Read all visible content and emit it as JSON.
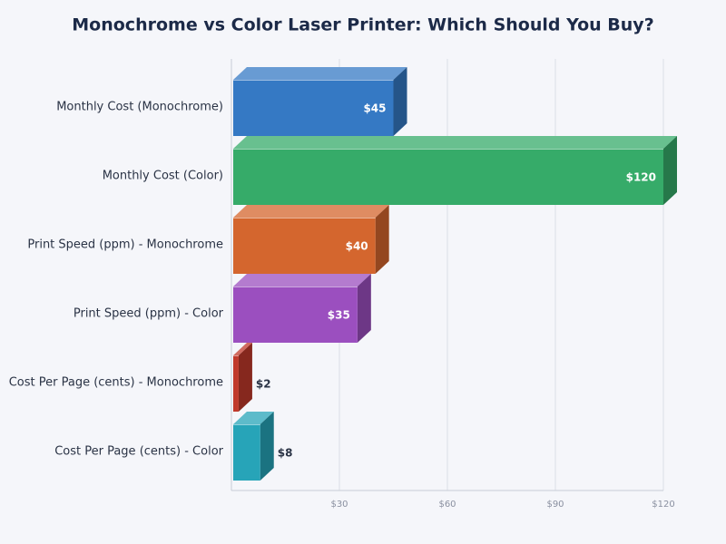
{
  "chart_data": {
    "type": "bar",
    "orientation": "horizontal",
    "title": "Monochrome vs Color Laser Printer: Which Should You Buy?",
    "categories": [
      "Monthly Cost (Monochrome)",
      "Monthly Cost (Color)",
      "Print Speed (ppm) - Monochrome",
      "Print Speed (ppm) - Color",
      "Cost Per Page (cents) - Monochrome",
      "Cost Per Page (cents) - Color"
    ],
    "values": [
      45,
      120,
      40,
      35,
      2,
      8
    ],
    "value_labels": [
      "$45",
      "$120",
      "$40",
      "$35",
      "$2",
      "$8"
    ],
    "colors": [
      "#3579c4",
      "#36ab69",
      "#d4662e",
      "#9b4fbf",
      "#c0392b",
      "#27a4b8"
    ],
    "xlim": [
      0,
      120
    ],
    "xticks": [
      {
        "value": 30,
        "label": "$30"
      },
      {
        "value": 60,
        "label": "$60"
      },
      {
        "value": 90,
        "label": "$90"
      },
      {
        "value": 120,
        "label": "$120"
      }
    ],
    "grid": true
  }
}
